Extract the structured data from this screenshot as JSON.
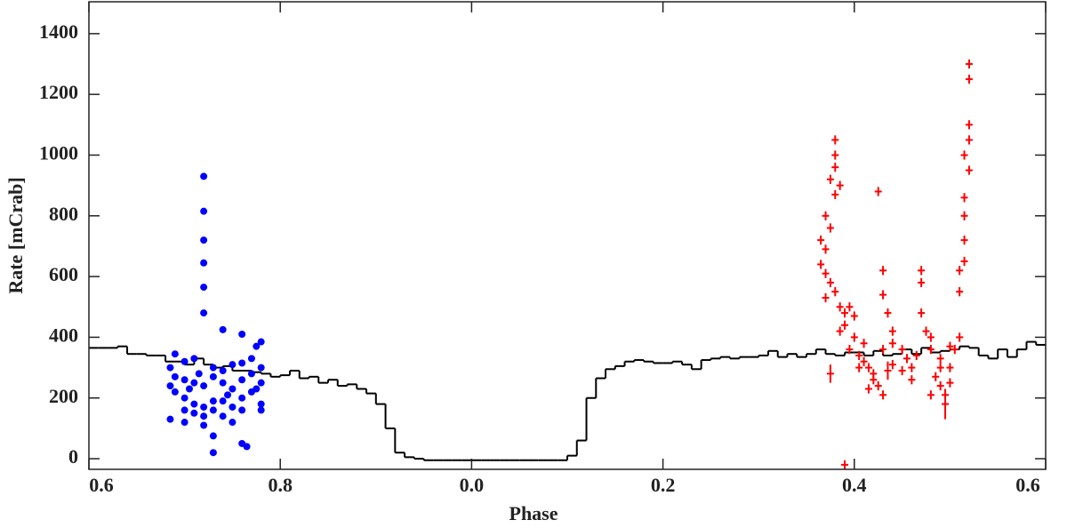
{
  "chart_data": {
    "type": "scatter",
    "xlabel": "Phase",
    "ylabel": "Rate [mCrab]",
    "xlim": [
      0.6,
      1.6
    ],
    "xticks": [
      0.6,
      0.8,
      {
        "value": 1.0,
        "label": "0.0"
      },
      {
        "value": 1.2,
        "label": "0.2"
      },
      {
        "value": 1.4,
        "label": "0.4"
      },
      {
        "value": 1.6,
        "label": "0.6"
      }
    ],
    "ylim": [
      -35,
      1505
    ],
    "yticks": [
      0,
      200,
      400,
      600,
      800,
      1000,
      1200,
      1400
    ],
    "histogram": {
      "color": "#000000",
      "bins": [
        0.6,
        0.61,
        0.62,
        0.63,
        0.64,
        0.65,
        0.66,
        0.67,
        0.68,
        0.69,
        0.7,
        0.71,
        0.72,
        0.73,
        0.74,
        0.75,
        0.76,
        0.77,
        0.78,
        0.79,
        0.8,
        0.81,
        0.82,
        0.83,
        0.84,
        0.85,
        0.86,
        0.87,
        0.88,
        0.89,
        0.9,
        0.91,
        0.92,
        0.93,
        0.94,
        0.95,
        0.96,
        0.97,
        0.98,
        0.99,
        1.0,
        1.01,
        1.02,
        1.03,
        1.04,
        1.05,
        1.06,
        1.07,
        1.08,
        1.09,
        1.1,
        1.11,
        1.12,
        1.13,
        1.14,
        1.15,
        1.16,
        1.17,
        1.18,
        1.19,
        1.2,
        1.21,
        1.22,
        1.23,
        1.24,
        1.25,
        1.26,
        1.27,
        1.28,
        1.29,
        1.3,
        1.31,
        1.32,
        1.33,
        1.34,
        1.35,
        1.36,
        1.37,
        1.38,
        1.39,
        1.4,
        1.41,
        1.42,
        1.43,
        1.44,
        1.45,
        1.46,
        1.47,
        1.48,
        1.49,
        1.5,
        1.51,
        1.52,
        1.53,
        1.54,
        1.55,
        1.56,
        1.57,
        1.58,
        1.59,
        1.6
      ],
      "values": [
        365,
        365,
        365,
        370,
        345,
        345,
        340,
        340,
        320,
        320,
        310,
        330,
        310,
        300,
        305,
        290,
        290,
        285,
        280,
        270,
        275,
        290,
        265,
        270,
        250,
        260,
        240,
        245,
        230,
        215,
        180,
        100,
        20,
        5,
        0,
        -5,
        -5,
        -5,
        -5,
        -5,
        -5,
        -5,
        -5,
        -5,
        -5,
        -5,
        -5,
        -5,
        -5,
        -5,
        10,
        60,
        200,
        265,
        295,
        305,
        320,
        325,
        320,
        315,
        315,
        320,
        310,
        295,
        325,
        330,
        335,
        330,
        335,
        335,
        340,
        355,
        335,
        345,
        335,
        345,
        360,
        345,
        340,
        350,
        350,
        340,
        355,
        340,
        345,
        360,
        345,
        365,
        350,
        355,
        360,
        370,
        365,
        340,
        330,
        360,
        335,
        360,
        385,
        375
      ]
    },
    "series": [
      {
        "color": "#0000ff",
        "marker": "circle",
        "x": [
          0.72,
          0.72,
          0.72,
          0.72,
          0.72,
          0.72,
          0.74,
          0.76,
          0.78,
          0.775,
          0.69,
          0.7,
          0.71,
          0.73,
          0.74,
          0.75,
          0.76,
          0.77,
          0.78,
          0.685,
          0.69,
          0.7,
          0.71,
          0.72,
          0.73,
          0.74,
          0.75,
          0.76,
          0.77,
          0.78,
          0.685,
          0.69,
          0.7,
          0.71,
          0.72,
          0.73,
          0.74,
          0.75,
          0.76,
          0.77,
          0.78,
          0.7,
          0.71,
          0.72,
          0.73,
          0.74,
          0.75,
          0.76,
          0.685,
          0.7,
          0.72,
          0.73,
          0.76,
          0.765,
          0.73,
          0.78,
          0.745,
          0.705,
          0.715,
          0.775
        ],
        "values": [
          930,
          815,
          720,
          645,
          565,
          480,
          425,
          410,
          385,
          370,
          345,
          320,
          330,
          300,
          290,
          310,
          315,
          330,
          300,
          300,
          270,
          260,
          250,
          240,
          270,
          250,
          230,
          260,
          280,
          250,
          240,
          220,
          200,
          180,
          170,
          160,
          190,
          170,
          200,
          220,
          180,
          160,
          150,
          140,
          190,
          140,
          120,
          160,
          130,
          120,
          110,
          75,
          50,
          40,
          20,
          160,
          210,
          230,
          280,
          230
        ]
      },
      {
        "color": "#ff0000",
        "marker": "plus",
        "x": [
          1.38,
          1.38,
          1.38,
          1.375,
          1.385,
          1.38,
          1.37,
          1.375,
          1.365,
          1.37,
          1.365,
          1.37,
          1.375,
          1.38,
          1.37,
          1.385,
          1.39,
          1.395,
          1.4,
          1.39,
          1.385,
          1.4,
          1.41,
          1.395,
          1.405,
          1.41,
          1.415,
          1.42,
          1.42,
          1.425,
          1.43,
          1.415,
          1.405,
          1.425,
          1.43,
          1.43,
          1.435,
          1.44,
          1.44,
          1.43,
          1.375,
          1.39,
          1.45,
          1.46,
          1.47,
          1.47,
          1.47,
          1.475,
          1.48,
          1.48,
          1.49,
          1.49,
          1.485,
          1.49,
          1.495,
          1.5,
          1.5,
          1.505,
          1.51,
          1.51,
          1.51,
          1.515,
          1.515,
          1.515,
          1.515,
          1.52,
          1.515,
          1.52,
          1.52,
          1.52,
          1.52,
          1.465,
          1.48,
          1.45,
          1.455,
          1.46,
          1.5,
          1.495,
          1.44,
          1.435
        ],
        "values": [
          1050,
          1000,
          960,
          920,
          900,
          870,
          800,
          760,
          720,
          690,
          640,
          610,
          580,
          550,
          530,
          500,
          480,
          500,
          470,
          440,
          420,
          400,
          380,
          360,
          340,
          320,
          300,
          280,
          260,
          240,
          210,
          230,
          300,
          880,
          620,
          540,
          480,
          420,
          380,
          360,
          280,
          -20,
          290,
          260,
          620,
          580,
          480,
          420,
          400,
          360,
          330,
          300,
          270,
          240,
          210,
          250,
          300,
          360,
          400,
          550,
          620,
          650,
          720,
          800,
          860,
          950,
          1000,
          1050,
          1100,
          1250,
          1300,
          340,
          210,
          360,
          330,
          300,
          370,
          180,
          310,
          290
        ],
        "errors": [
          15,
          15,
          15,
          15,
          15,
          15,
          15,
          15,
          15,
          15,
          15,
          15,
          15,
          15,
          15,
          15,
          15,
          15,
          15,
          15,
          15,
          15,
          15,
          15,
          15,
          15,
          15,
          15,
          15,
          15,
          15,
          15,
          15,
          15,
          15,
          15,
          15,
          15,
          15,
          15,
          30,
          15,
          15,
          15,
          15,
          15,
          15,
          15,
          15,
          15,
          15,
          15,
          15,
          15,
          15,
          15,
          15,
          15,
          15,
          15,
          15,
          15,
          15,
          15,
          15,
          15,
          15,
          15,
          15,
          15,
          15,
          15,
          15,
          15,
          15,
          15,
          15,
          50,
          15,
          30
        ]
      }
    ]
  }
}
